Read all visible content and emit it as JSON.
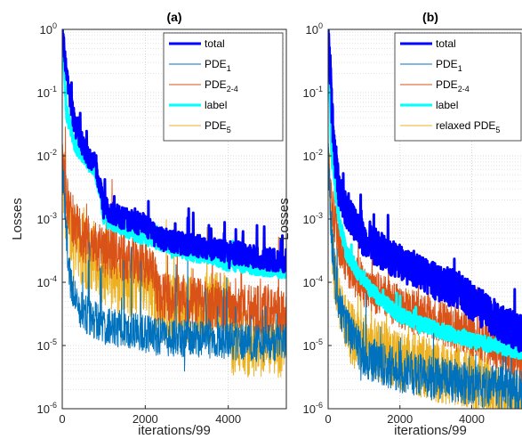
{
  "chart_data": [
    {
      "type": "line",
      "title": "(a)",
      "xlabel": "iterations/99",
      "ylabel": "Losses",
      "xlim": [
        0,
        5400
      ],
      "ylim": [
        1e-06,
        1
      ],
      "yscale": "log",
      "xticks": [
        "0",
        "2000",
        "4000"
      ],
      "yticks": [
        {
          "base": "10",
          "exp": "0"
        },
        {
          "base": "10",
          "exp": "-1"
        },
        {
          "base": "10",
          "exp": "-2"
        },
        {
          "base": "10",
          "exp": "-3"
        },
        {
          "base": "10",
          "exp": "-4"
        },
        {
          "base": "10",
          "exp": "-5"
        },
        {
          "base": "10",
          "exp": "-6"
        }
      ],
      "grid": true,
      "legend_position": "top-right",
      "series": [
        {
          "name": "total",
          "sub": "",
          "color": "#0000ff",
          "width": 3,
          "noise": 0.18,
          "spike": 0.6,
          "x": [
            0,
            100,
            300,
            600,
            800,
            1000,
            1500,
            2000,
            2300,
            2600,
            3000,
            3500,
            4000,
            4500,
            5000,
            5400
          ],
          "y": [
            1,
            0.2,
            0.03,
            0.01,
            0.008,
            0.0015,
            0.001,
            0.0008,
            0.0005,
            0.00045,
            0.0004,
            0.00035,
            0.0003,
            0.00026,
            0.00023,
            0.00021
          ]
        },
        {
          "name": "PDE",
          "sub": "1",
          "color": "#0072bd",
          "width": 1,
          "noise": 0.3,
          "spike": 1.5,
          "x": [
            0,
            100,
            200,
            400,
            600,
            800,
            1000,
            1500,
            2000,
            2200,
            3000,
            4000,
            4200,
            5000,
            5400
          ],
          "y": [
            0.01,
            0.0005,
            0.0001,
            4e-05,
            3e-05,
            2.5e-05,
            2e-05,
            1.8e-05,
            1.6e-05,
            1.4e-05,
            1.3e-05,
            1.2e-05,
            1.1e-05,
            1.1e-05,
            1.1e-05
          ]
        },
        {
          "name": "PDE",
          "sub": "2-4",
          "color": "#d95319",
          "width": 1,
          "noise": 0.4,
          "spike": 1.2,
          "x": [
            0,
            100,
            300,
            500,
            800,
            1000,
            1500,
            2000,
            2200,
            2300,
            3000,
            4000,
            4200,
            5000,
            5400
          ],
          "y": [
            0.01,
            0.002,
            0.0008,
            0.0005,
            0.0004,
            0.0003,
            0.00025,
            0.0002,
            0.00015,
            6e-05,
            5e-05,
            4e-05,
            3.8e-05,
            3.5e-05,
            3.3e-05
          ]
        },
        {
          "name": "label",
          "sub": "",
          "color": "#00ffff",
          "width": 3,
          "noise": 0.12,
          "spike": 0.4,
          "x": [
            0,
            100,
            300,
            600,
            800,
            1000,
            1500,
            2000,
            2500,
            3000,
            3500,
            4000,
            4500,
            5000,
            5400
          ],
          "y": [
            1,
            0.05,
            0.015,
            0.008,
            0.006,
            0.001,
            0.0007,
            0.0005,
            0.0004,
            0.0003,
            0.00025,
            0.0002,
            0.00018,
            0.00016,
            0.00015
          ]
        },
        {
          "name": "PDE",
          "sub": "5",
          "color": "#edb120",
          "width": 1,
          "noise": 0.55,
          "spike": 1.4,
          "x": [
            0,
            100,
            300,
            500,
            800,
            1000,
            1500,
            2000,
            2200,
            2300,
            3000,
            4000,
            4100,
            5000,
            5400
          ],
          "y": [
            0.01,
            0.001,
            0.0005,
            0.0003,
            0.0002,
            0.00015,
            0.0001,
            0.0001,
            8e-05,
            4e-05,
            4e-05,
            4e-05,
            1.1e-05,
            1.1e-05,
            1.1e-05
          ]
        }
      ]
    },
    {
      "type": "line",
      "title": "(b)",
      "xlabel": "iterations/99",
      "ylabel": "Losses",
      "xlim": [
        0,
        5400
      ],
      "ylim": [
        1e-06,
        1
      ],
      "yscale": "log",
      "xticks": [
        "0",
        "2000",
        "4000"
      ],
      "yticks": [
        {
          "base": "10",
          "exp": "0"
        },
        {
          "base": "10",
          "exp": "-1"
        },
        {
          "base": "10",
          "exp": "-2"
        },
        {
          "base": "10",
          "exp": "-3"
        },
        {
          "base": "10",
          "exp": "-4"
        },
        {
          "base": "10",
          "exp": "-5"
        },
        {
          "base": "10",
          "exp": "-6"
        }
      ],
      "grid": true,
      "legend_position": "top-right",
      "series": [
        {
          "name": "total",
          "sub": "",
          "color": "#0000ff",
          "width": 3,
          "noise": 0.3,
          "spike": 0.7,
          "x": [
            0,
            50,
            100,
            200,
            300,
            500,
            800,
            1000,
            1500,
            2000,
            2500,
            3000,
            3500,
            4000,
            4500,
            5000,
            5400
          ],
          "y": [
            1,
            0.3,
            0.05,
            0.008,
            0.003,
            0.0015,
            0.0008,
            0.0005,
            0.0003,
            0.0002,
            0.00015,
            0.0001,
            8e-05,
            5e-05,
            3e-05,
            2e-05,
            1.5e-05
          ]
        },
        {
          "name": "PDE",
          "sub": "1",
          "color": "#0072bd",
          "width": 1,
          "noise": 0.35,
          "spike": 1.0,
          "x": [
            0,
            100,
            200,
            300,
            500,
            800,
            1000,
            1500,
            2000,
            3000,
            4000,
            5000,
            5400
          ],
          "y": [
            0.01,
            0.0005,
            0.0001,
            5e-05,
            2e-05,
            1e-05,
            7e-06,
            5e-06,
            4e-06,
            3e-06,
            2.5e-06,
            2e-06,
            1.8e-06
          ]
        },
        {
          "name": "PDE",
          "sub": "2-4",
          "color": "#d95319",
          "width": 1,
          "noise": 0.35,
          "spike": 0.9,
          "x": [
            0,
            100,
            200,
            300,
            500,
            800,
            1000,
            1500,
            2000,
            3000,
            4000,
            5000,
            5400
          ],
          "y": [
            0.01,
            0.002,
            0.0008,
            0.0004,
            0.0002,
            0.00012,
            9e-05,
            6e-05,
            4e-05,
            2.5e-05,
            1.5e-05,
            8e-06,
            5e-06
          ]
        },
        {
          "name": "label",
          "sub": "",
          "color": "#00ffff",
          "width": 3,
          "noise": 0.12,
          "spike": 0.3,
          "x": [
            0,
            100,
            200,
            300,
            500,
            800,
            1000,
            1500,
            2000,
            3000,
            4000,
            5000,
            5400
          ],
          "y": [
            1,
            0.01,
            0.003,
            0.001,
            0.0003,
            0.00015,
            0.0001,
            5e-05,
            3e-05,
            1.8e-05,
            1.2e-05,
            9e-06,
            8e-06
          ]
        },
        {
          "name": "relaxed PDE",
          "sub": "5",
          "color": "#edb120",
          "width": 1,
          "noise": 0.5,
          "spike": 1.2,
          "x": [
            0,
            100,
            200,
            300,
            500,
            800,
            1000,
            1500,
            2000,
            3000,
            4000,
            5000,
            5400
          ],
          "y": [
            0.01,
            0.0005,
            0.0001,
            5e-05,
            2e-05,
            1.2e-05,
            1e-05,
            8e-06,
            6e-06,
            4e-06,
            3e-06,
            1.5e-06,
            1.2e-06
          ]
        }
      ]
    }
  ]
}
